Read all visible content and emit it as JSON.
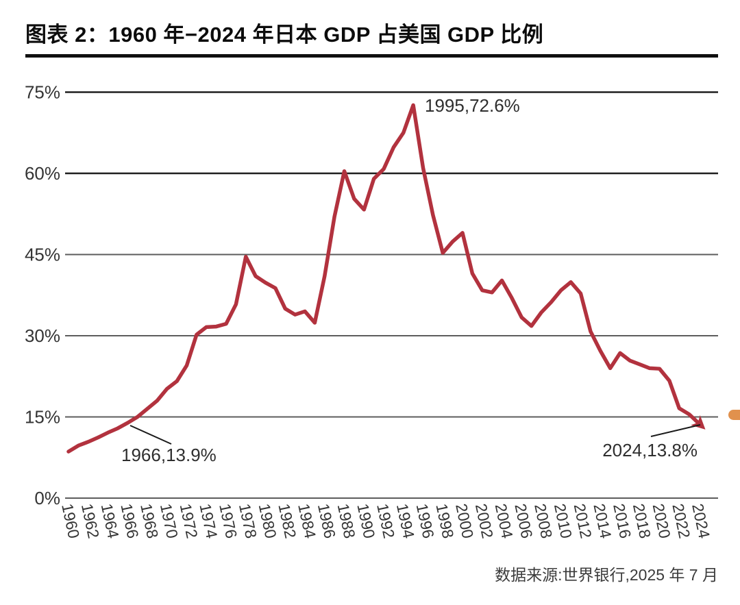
{
  "page": {
    "title": "图表 2：1960 年−2024 年日本 GDP 占美国 GDP 比例",
    "source": "数据来源:世界银行,2025 年 7 月"
  },
  "chart_data": {
    "type": "line",
    "title": "1960年-2024年日本GDP占美国GDP比例",
    "series_name": "日本GDP占美国GDP比例",
    "x": [
      1960,
      1961,
      1962,
      1963,
      1964,
      1965,
      1966,
      1967,
      1968,
      1969,
      1970,
      1971,
      1972,
      1973,
      1974,
      1975,
      1976,
      1977,
      1978,
      1979,
      1980,
      1981,
      1982,
      1983,
      1984,
      1985,
      1986,
      1987,
      1988,
      1989,
      1990,
      1991,
      1992,
      1993,
      1994,
      1995,
      1996,
      1997,
      1998,
      1999,
      2000,
      2001,
      2002,
      2003,
      2004,
      2005,
      2006,
      2007,
      2008,
      2009,
      2010,
      2011,
      2012,
      2013,
      2014,
      2015,
      2016,
      2017,
      2018,
      2019,
      2020,
      2021,
      2022,
      2023,
      2024
    ],
    "values": [
      8.6,
      9.7,
      10.4,
      11.2,
      12.1,
      12.9,
      13.9,
      15.0,
      16.5,
      18.0,
      20.2,
      21.6,
      24.5,
      30.2,
      31.6,
      31.7,
      32.2,
      35.8,
      44.6,
      41.0,
      39.8,
      38.8,
      35.0,
      33.9,
      34.5,
      32.4,
      41.0,
      52.0,
      60.4,
      55.3,
      53.3,
      59.0,
      60.8,
      64.8,
      67.5,
      72.6,
      61.0,
      52.3,
      45.3,
      47.4,
      49.0,
      41.5,
      38.4,
      38.0,
      40.2,
      37.0,
      33.4,
      31.8,
      34.3,
      36.2,
      38.4,
      39.9,
      37.8,
      30.8,
      27.2,
      24.0,
      26.8,
      25.4,
      24.7,
      24.0,
      23.9,
      21.7,
      16.6,
      15.5,
      13.8
    ],
    "unit": "%",
    "ylim": [
      0,
      75
    ],
    "y_tick_values": [
      0,
      15,
      30,
      45,
      60,
      75
    ],
    "y_tick_labels": [
      "0%",
      "15%",
      "30%",
      "45%",
      "60%",
      "75%"
    ],
    "x_tick_years": [
      1960,
      1962,
      1964,
      1966,
      1968,
      1970,
      1972,
      1974,
      1976,
      1978,
      1980,
      1982,
      1984,
      1986,
      1988,
      1990,
      1992,
      1994,
      1996,
      1998,
      2000,
      2002,
      2004,
      2006,
      2008,
      2010,
      2012,
      2014,
      2016,
      2018,
      2020,
      2022,
      2024
    ],
    "grid": true,
    "legend_position": "none",
    "line_color": "#b2323e",
    "accent_marker_color": "#e1914d",
    "annotations": [
      {
        "label": "1995,72.6%",
        "year": 1995,
        "value": 72.6
      },
      {
        "label": "1966,13.9%",
        "year": 1966,
        "value": 13.9
      },
      {
        "label": "2024,13.8%",
        "year": 2024,
        "value": 13.8
      }
    ]
  }
}
